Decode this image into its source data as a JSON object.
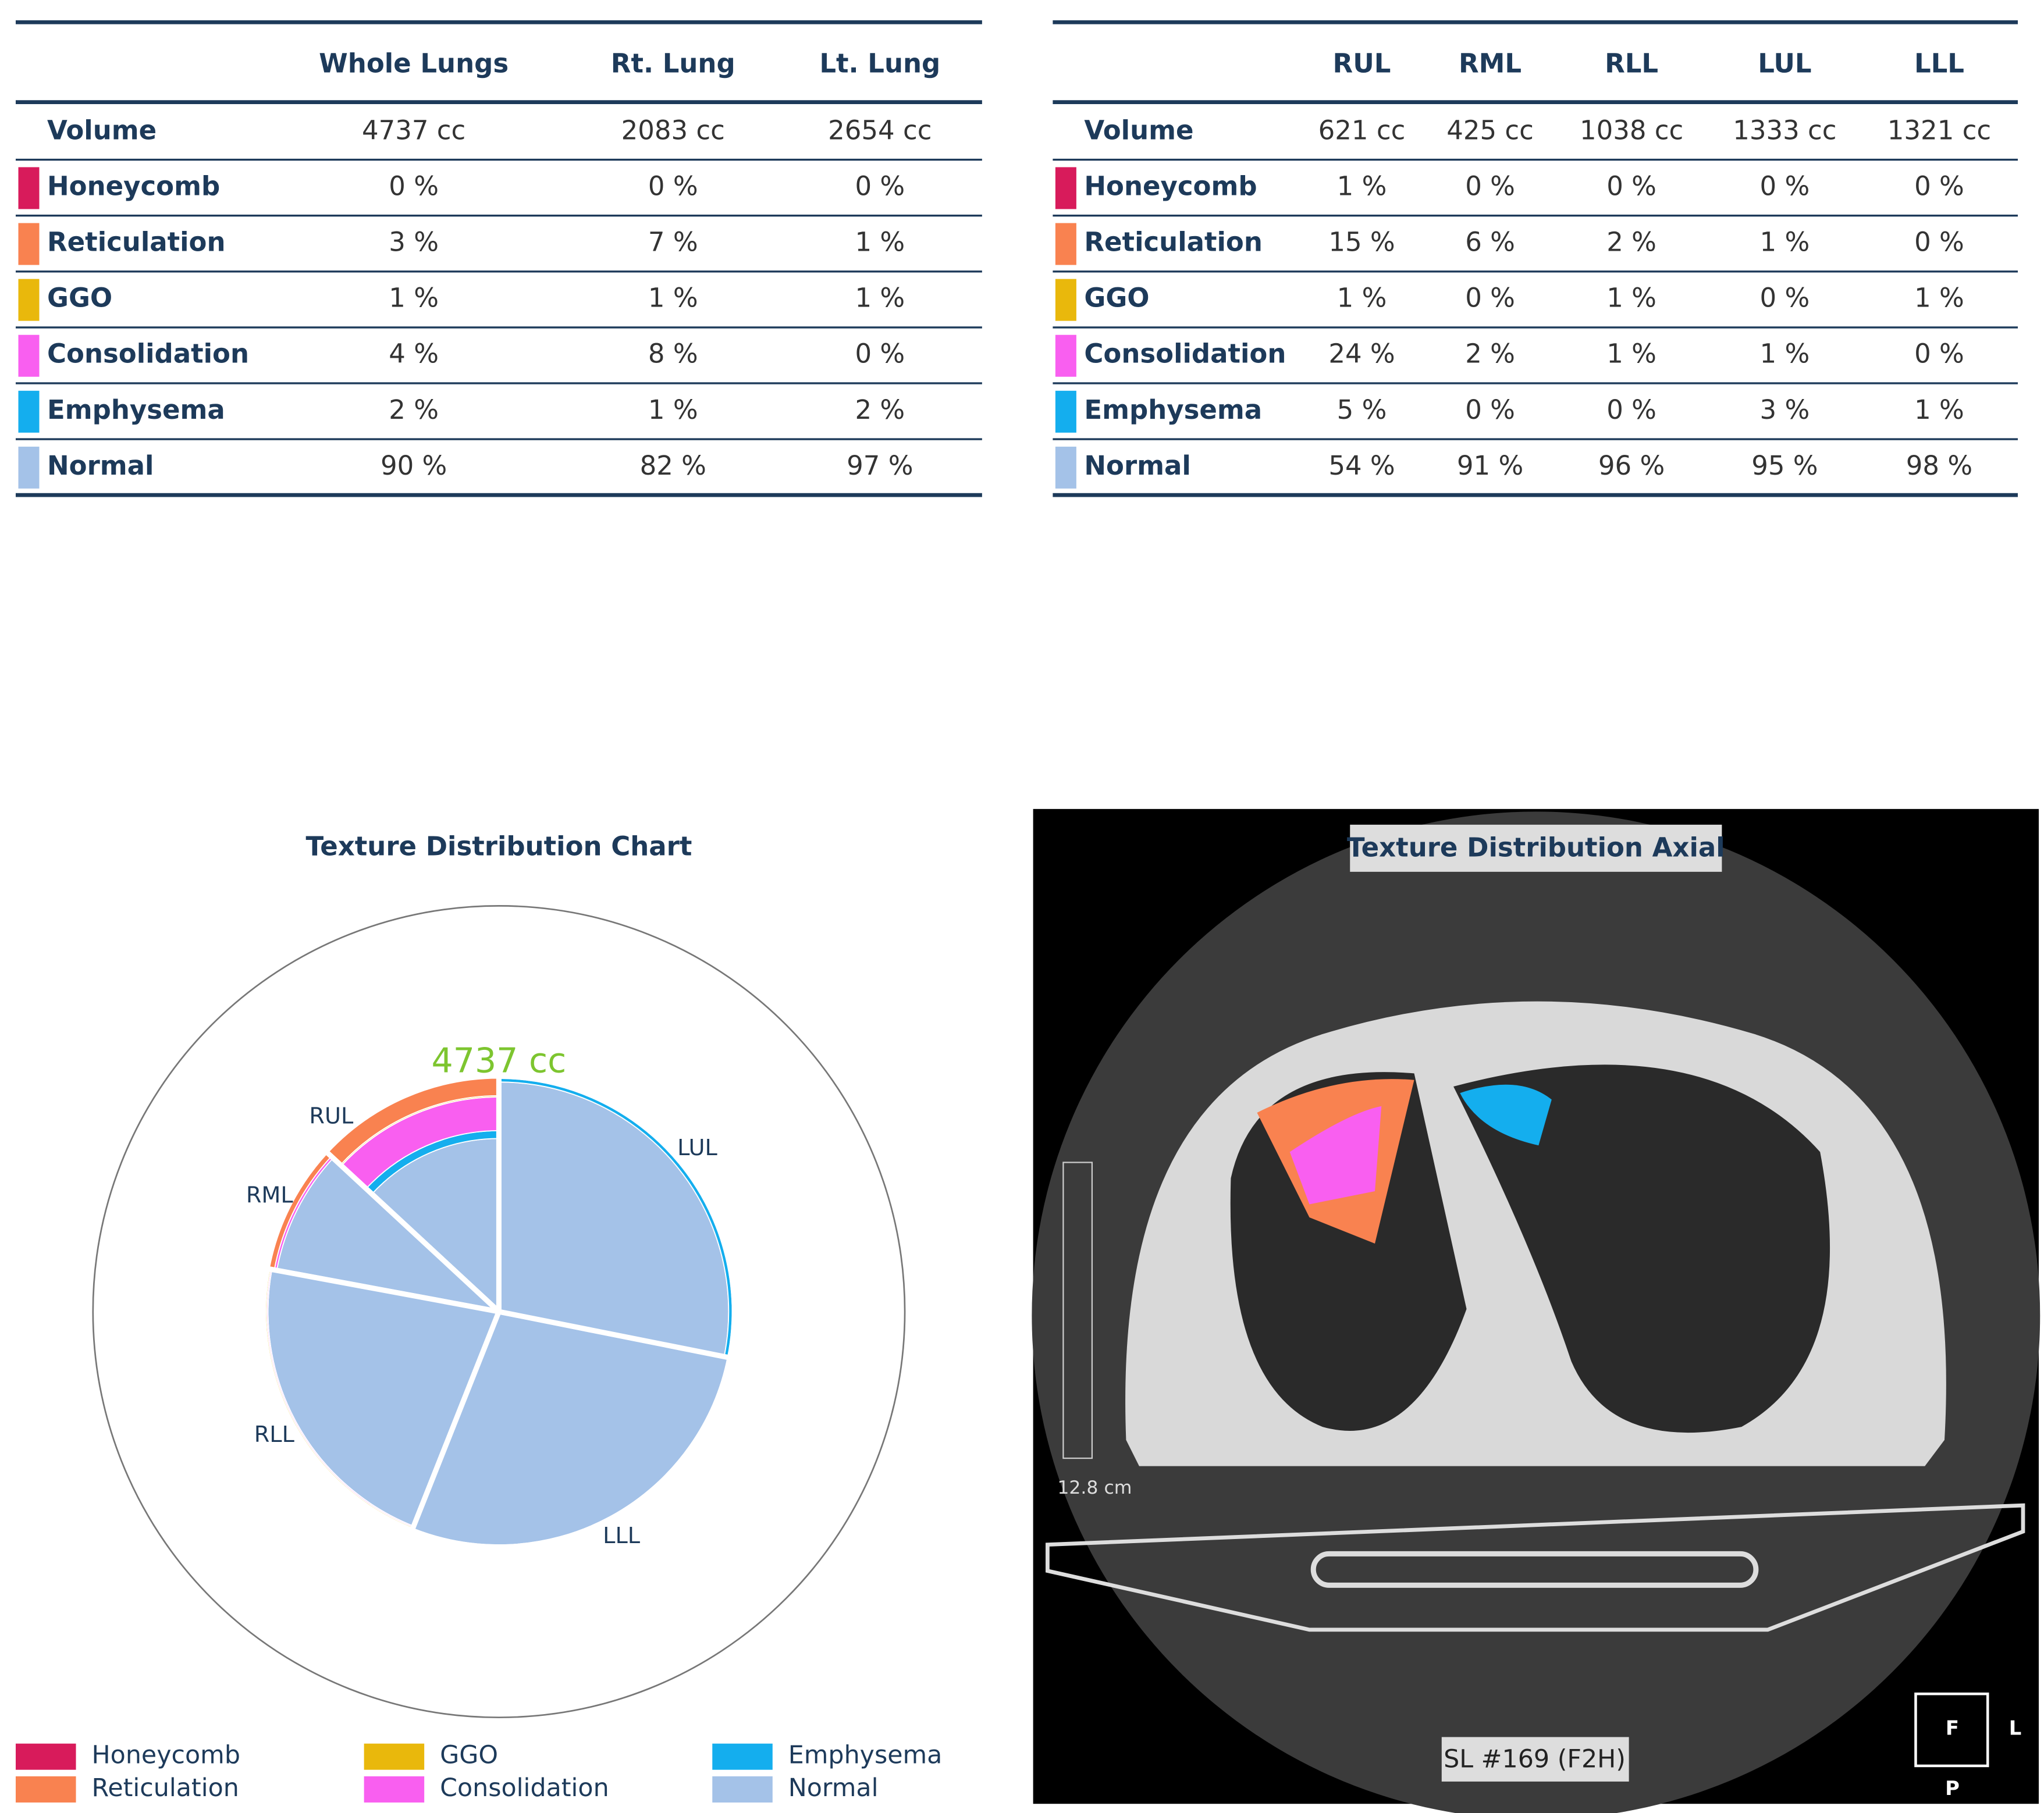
{
  "tables": [
    {
      "columns": [
        "Whole Lungs",
        "Rt. Lung",
        "Lt. Lung"
      ],
      "rows": [
        {
          "label": "Volume",
          "cells": [
            "4737 cc",
            "2083 cc",
            "2654 cc"
          ]
        },
        {
          "label": "Honeycomb",
          "color": "#d81b5b",
          "cells": [
            "0 %",
            "0 %",
            "0 %"
          ]
        },
        {
          "label": "Reticulation",
          "color": "#f98250",
          "cells": [
            "3 %",
            "7 %",
            "1 %"
          ]
        },
        {
          "label": "GGO",
          "color": "#e9b80c",
          "cells": [
            "1 %",
            "1 %",
            "1 %"
          ]
        },
        {
          "label": "Consolidation",
          "color": "#f95ff0",
          "cells": [
            "4 %",
            "8 %",
            "0 %"
          ]
        },
        {
          "label": "Emphysema",
          "color": "#14aeee",
          "cells": [
            "2 %",
            "1 %",
            "2 %"
          ]
        },
        {
          "label": "Normal",
          "color": "#a4c2e8",
          "cells": [
            "90 %",
            "82 %",
            "97 %"
          ]
        }
      ]
    },
    {
      "columns": [
        "RUL",
        "RML",
        "RLL",
        "LUL",
        "LLL"
      ],
      "rows": [
        {
          "label": "Volume",
          "cells": [
            "621 cc",
            "425 cc",
            "1038 cc",
            "1333 cc",
            "1321 cc"
          ]
        },
        {
          "label": "Honeycomb",
          "color": "#d81b5b",
          "cells": [
            "1 %",
            "0 %",
            "0 %",
            "0 %",
            "0 %"
          ]
        },
        {
          "label": "Reticulation",
          "color": "#f98250",
          "cells": [
            "15 %",
            "6 %",
            "2 %",
            "1 %",
            "0 %"
          ]
        },
        {
          "label": "GGO",
          "color": "#e9b80c",
          "cells": [
            "1 %",
            "0 %",
            "1 %",
            "0 %",
            "1 %"
          ]
        },
        {
          "label": "Consolidation",
          "color": "#f95ff0",
          "cells": [
            "24 %",
            "2 %",
            "1 %",
            "1 %",
            "0 %"
          ]
        },
        {
          "label": "Emphysema",
          "color": "#14aeee",
          "cells": [
            "5 %",
            "0 %",
            "0 %",
            "3 %",
            "1 %"
          ]
        },
        {
          "label": "Normal",
          "color": "#a4c2e8",
          "cells": [
            "54 %",
            "91 %",
            "96 %",
            "95 %",
            "98 %"
          ]
        }
      ]
    }
  ],
  "chart_data": {
    "type": "nested-pie",
    "title": "Texture Distribution Chart",
    "center_label": "4737 cc",
    "categories": [
      "RUL",
      "RML",
      "RLL",
      "LLL",
      "LUL"
    ],
    "values": [
      621,
      425,
      1038,
      1321,
      1333
    ],
    "series": [
      {
        "name": "Honeycomb",
        "color": "#d81b5b",
        "values": [
          1,
          0,
          0,
          0,
          0
        ]
      },
      {
        "name": "Reticulation",
        "color": "#f98250",
        "values": [
          15,
          6,
          2,
          0,
          1
        ]
      },
      {
        "name": "GGO",
        "color": "#e9b80c",
        "values": [
          1,
          0,
          1,
          1,
          0
        ]
      },
      {
        "name": "Consolidation",
        "color": "#f95ff0",
        "values": [
          24,
          2,
          1,
          0,
          1
        ]
      },
      {
        "name": "Emphysema",
        "color": "#14aeee",
        "values": [
          5,
          0,
          0,
          1,
          3
        ]
      },
      {
        "name": "Normal",
        "color": "#a4c2e8",
        "values": [
          54,
          91,
          96,
          98,
          95
        ]
      }
    ]
  },
  "axial": {
    "title": "Texture Distribution Axial",
    "scale": "12.8 cm",
    "slice": "SL #169 (F2H)",
    "orient": [
      "F",
      "L",
      "P"
    ]
  }
}
